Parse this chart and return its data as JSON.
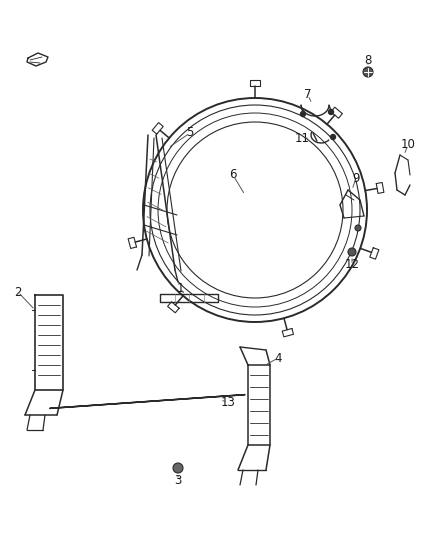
{
  "bg_color": "#ffffff",
  "line_color": "#2a2a2a",
  "label_color": "#1a1a1a",
  "fig_width": 4.38,
  "fig_height": 5.33,
  "dpi": 100,
  "font_size": 8.5
}
